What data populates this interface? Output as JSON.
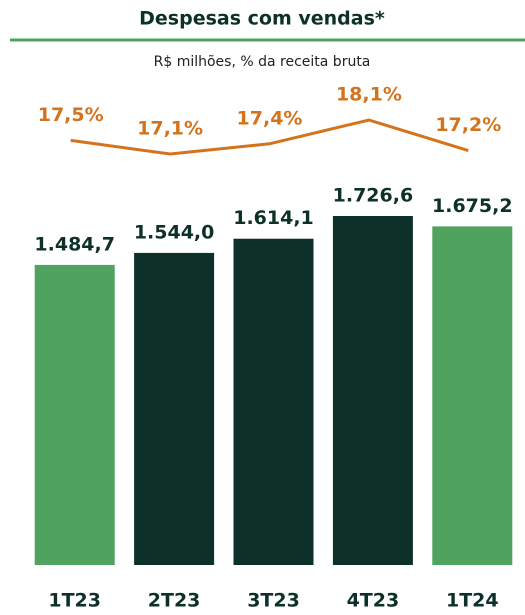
{
  "chart_data": {
    "type": "bar",
    "title": "Despesas com vendas*",
    "subtitle": "R$ milhões, % da receita bruta",
    "categories": [
      "1T23",
      "2T23",
      "3T23",
      "4T23",
      "1T24"
    ],
    "values": [
      1484.7,
      1544.0,
      1614.1,
      1726.6,
      1675.2
    ],
    "value_labels": [
      "1.484,7",
      "1.544,0",
      "1.614,1",
      "1.726,6",
      "1.675,2"
    ],
    "colors": [
      "#4fa35e",
      "#0d3028",
      "#0d3028",
      "#0d3028",
      "#4fa35e"
    ],
    "line": {
      "type": "line",
      "values": [
        17.5,
        17.1,
        17.4,
        18.1,
        17.2
      ],
      "value_labels": [
        "17,5%",
        "17,1%",
        "17,4%",
        "18,1%",
        "17,2%"
      ],
      "color": "#d4731b"
    }
  }
}
